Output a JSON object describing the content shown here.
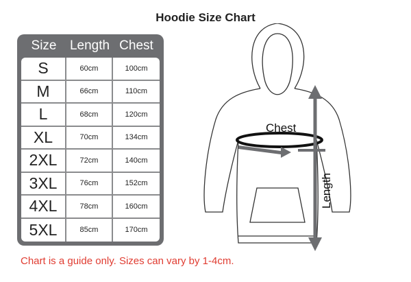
{
  "title": "Hoodie Size Chart",
  "table": {
    "headers": [
      "Size",
      "Length",
      "Chest"
    ],
    "rows": [
      [
        "S",
        "60cm",
        "100cm"
      ],
      [
        "M",
        "66cm",
        "110cm"
      ],
      [
        "L",
        "68cm",
        "120cm"
      ],
      [
        "XL",
        "70cm",
        "134cm"
      ],
      [
        "2XL",
        "72cm",
        "140cm"
      ],
      [
        "3XL",
        "76cm",
        "152cm"
      ],
      [
        "4XL",
        "78cm",
        "160cm"
      ],
      [
        "5XL",
        "85cm",
        "170cm"
      ]
    ]
  },
  "diagram": {
    "chest_label": "Chest",
    "length_label": "Length"
  },
  "note": "Chart is a guide only. Sizes can vary by 1-4cm.",
  "colors": {
    "table_header": "#6d6e71",
    "note": "#e03c31",
    "arrow": "#6d6e71"
  }
}
